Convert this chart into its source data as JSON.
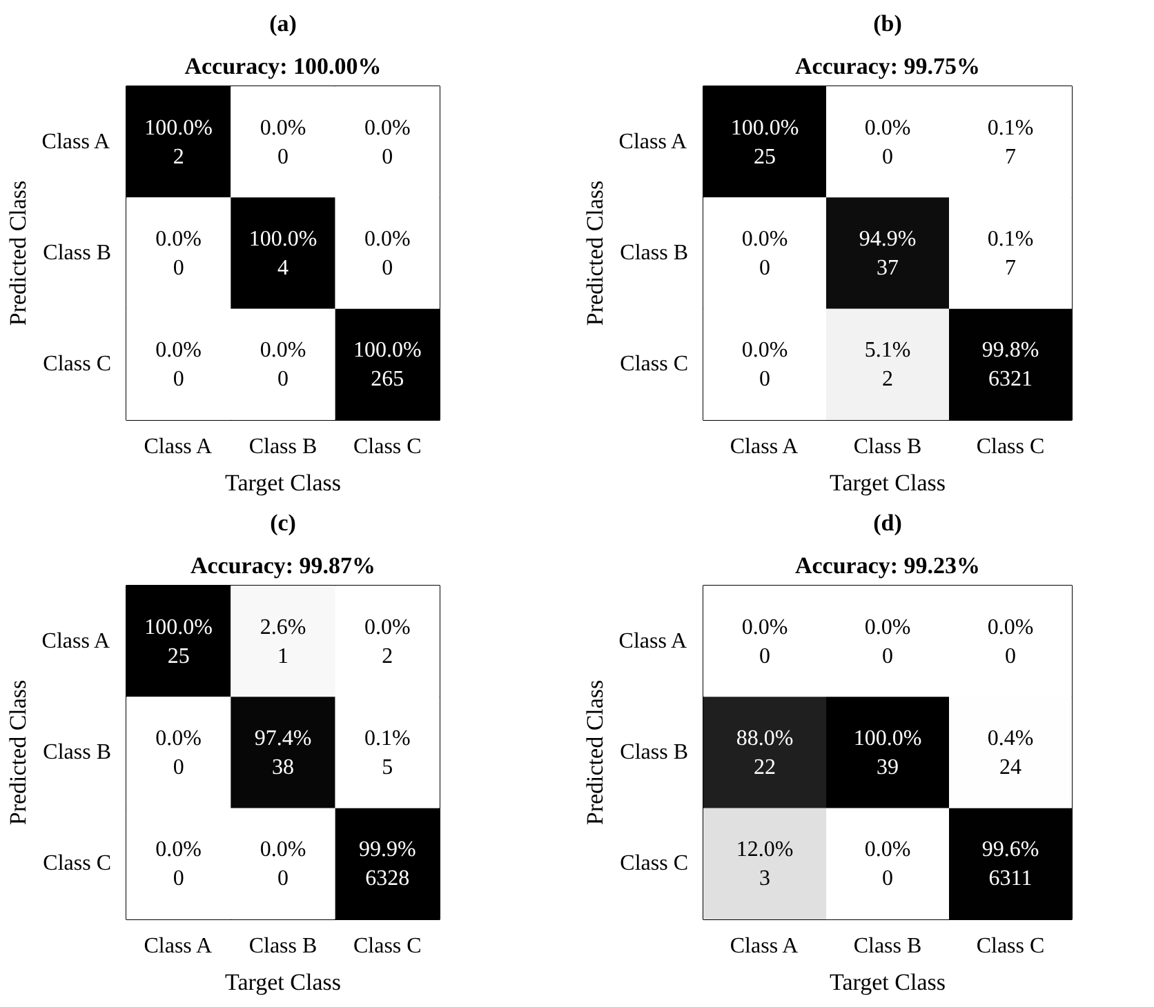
{
  "chart_data": [
    {
      "type": "heatmap",
      "title": "(a)",
      "subtitle": "Accuracy: 100.00%",
      "xlabel": "Target Class",
      "ylabel": "Predicted Class",
      "categories": [
        "Class A",
        "Class B",
        "Class C"
      ],
      "y_categories": [
        "Class A",
        "Class B",
        "Class C"
      ],
      "cells": [
        [
          100.0,
          0.0,
          0.0
        ],
        [
          0.0,
          100.0,
          0.0
        ],
        [
          0.0,
          0.0,
          100.0
        ]
      ],
      "cell_labels": [
        [
          "100.0%",
          "0.0%",
          "0.0%"
        ],
        [
          "0.0%",
          "100.0%",
          "0.0%"
        ],
        [
          "0.0%",
          "0.0%",
          "100.0%"
        ]
      ],
      "annotations": [
        "2",
        "0",
        "0",
        "0",
        "4",
        "0",
        "0",
        "0",
        "265"
      ]
    },
    {
      "type": "heatmap",
      "title": "(b)",
      "subtitle": "Accuracy: 99.75%",
      "xlabel": "Target Class",
      "ylabel": "Predicted Class",
      "categories": [
        "Class A",
        "Class B",
        "Class C"
      ],
      "y_categories": [
        "Class A",
        "Class B",
        "Class C"
      ],
      "cells": [
        [
          100.0,
          0.0,
          0.1
        ],
        [
          0.0,
          94.9,
          0.1
        ],
        [
          0.0,
          5.1,
          99.8
        ]
      ],
      "cell_labels": [
        [
          "100.0%",
          "0.0%",
          "0.1%"
        ],
        [
          "0.0%",
          "94.9%",
          "0.1%"
        ],
        [
          "0.0%",
          "5.1%",
          "99.8%"
        ]
      ],
      "annotations": [
        "25",
        "0",
        "7",
        "0",
        "37",
        "7",
        "0",
        "2",
        "6321"
      ]
    },
    {
      "type": "heatmap",
      "title": "(c)",
      "subtitle": "Accuracy: 99.87%",
      "xlabel": "Target Class",
      "ylabel": "Predicted Class",
      "categories": [
        "Class A",
        "Class B",
        "Class C"
      ],
      "y_categories": [
        "Class A",
        "Class B",
        "Class C"
      ],
      "cells": [
        [
          100.0,
          2.6,
          0.0
        ],
        [
          0.0,
          97.4,
          0.1
        ],
        [
          0.0,
          0.0,
          99.9
        ]
      ],
      "cell_labels": [
        [
          "100.0%",
          "2.6%",
          "0.0%"
        ],
        [
          "0.0%",
          "97.4%",
          "0.1%"
        ],
        [
          "0.0%",
          "0.0%",
          "99.9%"
        ]
      ],
      "annotations": [
        "25",
        "1",
        "2",
        "0",
        "38",
        "5",
        "0",
        "0",
        "6328"
      ]
    },
    {
      "type": "heatmap",
      "title": "(d)",
      "subtitle": "Accuracy: 99.23%",
      "xlabel": "Target Class",
      "ylabel": "Predicted Class",
      "categories": [
        "Class A",
        "Class B",
        "Class C"
      ],
      "y_categories": [
        "Class A",
        "Class B",
        "Class C"
      ],
      "cells": [
        [
          0.0,
          0.0,
          0.0
        ],
        [
          88.0,
          100.0,
          0.4
        ],
        [
          12.0,
          0.0,
          99.6
        ]
      ],
      "cell_labels": [
        [
          "0.0%",
          "0.0%",
          "0.0%"
        ],
        [
          "88.0%",
          "100.0%",
          "0.4%"
        ],
        [
          "12.0%",
          "0.0%",
          "99.6%"
        ]
      ],
      "annotations": [
        "0",
        "0",
        "0",
        "22",
        "39",
        "24",
        "3",
        "0",
        "6311"
      ]
    }
  ]
}
